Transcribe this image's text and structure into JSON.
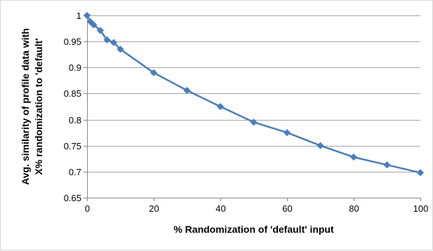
{
  "chart_data": {
    "type": "line",
    "title": "",
    "xlabel": "% Randomization of 'default' input",
    "ylabel_lines": [
      "Avg. similarity of profile data with",
      "X% randomization to 'default'"
    ],
    "xlim": [
      0,
      100
    ],
    "ylim": [
      0.65,
      1
    ],
    "x_ticks": [
      0,
      20,
      40,
      60,
      80,
      100
    ],
    "y_ticks": [
      0.65,
      0.7,
      0.75,
      0.8,
      0.85,
      0.9,
      0.95,
      1
    ],
    "x_tick_labels": [
      "0",
      "20",
      "40",
      "60",
      "80",
      "100"
    ],
    "y_tick_labels": [
      "0.65",
      "0.7",
      "0.75",
      "0.8",
      "0.85",
      "0.9",
      "0.95",
      "1"
    ],
    "grid": "horizontal",
    "legend": "none",
    "series": [
      {
        "x": [
          0,
          1,
          2,
          4,
          6,
          8,
          10,
          20,
          30,
          40,
          50,
          60,
          70,
          80,
          90,
          100
        ],
        "values": [
          1.0,
          0.988,
          0.982,
          0.971,
          0.953,
          0.948,
          0.935,
          0.89,
          0.856,
          0.825,
          0.795,
          0.775,
          0.75,
          0.728,
          0.713,
          0.698
        ],
        "color": "#4a7ebb",
        "marker": "diamond"
      }
    ]
  },
  "colors": {
    "series": "#4a7ebb",
    "grid": "#878787",
    "axis": "#878787",
    "frame": "#d9d9d9"
  }
}
